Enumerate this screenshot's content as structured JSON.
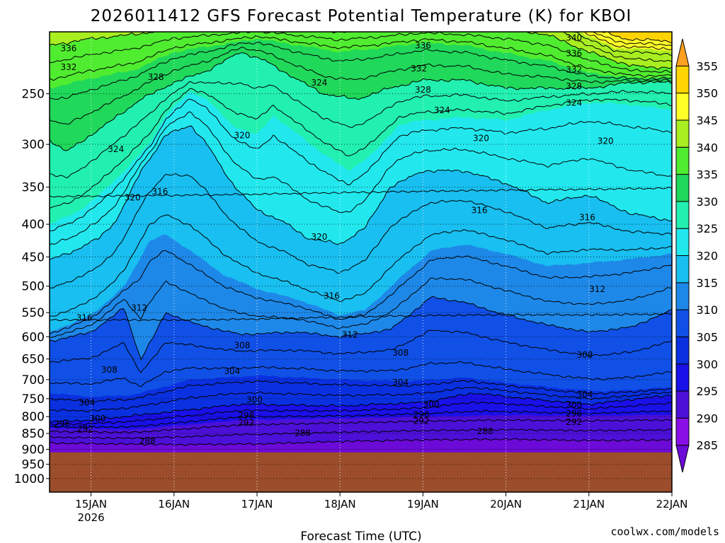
{
  "title": "2026011412 GFS Forecast Potential Temperature (K) for KBOI",
  "credit": "coolwx.com/models",
  "colors": {
    "ground": "#9c4d2b",
    "credit": "#c23b3b",
    "levels": [
      {
        "min": 280,
        "max": 285,
        "color": "#6c0ad8"
      },
      {
        "min": 285,
        "max": 290,
        "color": "#8a0fe6"
      },
      {
        "min": 290,
        "max": 295,
        "color": "#4c10d8"
      },
      {
        "min": 295,
        "max": 300,
        "color": "#1a10e8"
      },
      {
        "min": 300,
        "max": 305,
        "color": "#0a30e0"
      },
      {
        "min": 305,
        "max": 310,
        "color": "#1050e6"
      },
      {
        "min": 310,
        "max": 315,
        "color": "#1e88e8"
      },
      {
        "min": 315,
        "max": 320,
        "color": "#18bff0"
      },
      {
        "min": 320,
        "max": 325,
        "color": "#22e8ee"
      },
      {
        "min": 325,
        "max": 330,
        "color": "#22f0b0"
      },
      {
        "min": 330,
        "max": 335,
        "color": "#20d85a"
      },
      {
        "min": 335,
        "max": 340,
        "color": "#50ec30"
      },
      {
        "min": 340,
        "max": 345,
        "color": "#a8ee20"
      },
      {
        "min": 345,
        "max": 350,
        "color": "#ffff28"
      },
      {
        "min": 350,
        "max": 355,
        "color": "#ffd400"
      },
      {
        "min": 355,
        "max": 360,
        "color": "#ffa020"
      }
    ]
  },
  "chart_data": {
    "type": "heatmap",
    "title": "2026011412 GFS Forecast Potential Temperature (K) for KBOI",
    "xlabel": "Forecast Time (UTC)",
    "ylabel": "",
    "x_range_days": [
      14.5,
      22.0
    ],
    "x_ticks": [
      {
        "day": 15,
        "label": "15JAN",
        "sub": "2026"
      },
      {
        "day": 16,
        "label": "16JAN",
        "sub": ""
      },
      {
        "day": 17,
        "label": "17JAN",
        "sub": ""
      },
      {
        "day": 18,
        "label": "18JAN",
        "sub": ""
      },
      {
        "day": 19,
        "label": "19JAN",
        "sub": ""
      },
      {
        "day": 20,
        "label": "20JAN",
        "sub": ""
      },
      {
        "day": 21,
        "label": "21JAN",
        "sub": ""
      },
      {
        "day": 22,
        "label": "22JAN",
        "sub": ""
      }
    ],
    "y_ticks_hpa": [
      250,
      300,
      350,
      400,
      450,
      500,
      550,
      600,
      650,
      700,
      750,
      800,
      850,
      900,
      950,
      1000
    ],
    "pressure_range_hpa": [
      200,
      1050
    ],
    "ground_surface_hpa": 910,
    "colorbar_ticks": [
      285,
      290,
      295,
      300,
      305,
      310,
      315,
      320,
      325,
      330,
      335,
      340,
      345,
      350,
      355
    ],
    "colorbar_range": [
      280,
      360
    ],
    "grid": "dotted",
    "contour_interval_K": 2,
    "contour_labels": [
      {
        "value": 336,
        "day": 14.73,
        "hpa": 212
      },
      {
        "value": 332,
        "day": 14.73,
        "hpa": 227
      },
      {
        "value": 328,
        "day": 15.78,
        "hpa": 235
      },
      {
        "value": 324,
        "day": 15.3,
        "hpa": 305
      },
      {
        "value": 320,
        "day": 15.5,
        "hpa": 363
      },
      {
        "value": 316,
        "day": 15.83,
        "hpa": 355
      },
      {
        "value": 316,
        "day": 14.92,
        "hpa": 560
      },
      {
        "value": 312,
        "day": 15.58,
        "hpa": 540
      },
      {
        "value": 308,
        "day": 15.22,
        "hpa": 675
      },
      {
        "value": 304,
        "day": 14.95,
        "hpa": 760
      },
      {
        "value": 300,
        "day": 15.08,
        "hpa": 805
      },
      {
        "value": 296,
        "day": 14.65,
        "hpa": 820
      },
      {
        "value": 292,
        "day": 14.93,
        "hpa": 835
      },
      {
        "value": 288,
        "day": 15.68,
        "hpa": 872
      },
      {
        "value": 324,
        "day": 17.75,
        "hpa": 240
      },
      {
        "value": 320,
        "day": 16.82,
        "hpa": 290
      },
      {
        "value": 320,
        "day": 17.75,
        "hpa": 418
      },
      {
        "value": 316,
        "day": 17.9,
        "hpa": 517
      },
      {
        "value": 312,
        "day": 18.12,
        "hpa": 595
      },
      {
        "value": 308,
        "day": 16.82,
        "hpa": 618
      },
      {
        "value": 304,
        "day": 16.7,
        "hpa": 678
      },
      {
        "value": 300,
        "day": 16.97,
        "hpa": 752
      },
      {
        "value": 298,
        "day": 16.87,
        "hpa": 795
      },
      {
        "value": 292,
        "day": 16.87,
        "hpa": 817
      },
      {
        "value": 288,
        "day": 17.55,
        "hpa": 848
      },
      {
        "value": 336,
        "day": 19.0,
        "hpa": 210
      },
      {
        "value": 332,
        "day": 18.95,
        "hpa": 228
      },
      {
        "value": 328,
        "day": 19.0,
        "hpa": 246
      },
      {
        "value": 324,
        "day": 19.23,
        "hpa": 265
      },
      {
        "value": 320,
        "day": 19.7,
        "hpa": 293
      },
      {
        "value": 316,
        "day": 19.68,
        "hpa": 380
      },
      {
        "value": 308,
        "day": 18.73,
        "hpa": 635
      },
      {
        "value": 304,
        "day": 18.73,
        "hpa": 707
      },
      {
        "value": 300,
        "day": 19.1,
        "hpa": 765
      },
      {
        "value": 296,
        "day": 18.98,
        "hpa": 793
      },
      {
        "value": 292,
        "day": 18.98,
        "hpa": 812
      },
      {
        "value": 288,
        "day": 19.75,
        "hpa": 842
      },
      {
        "value": 340,
        "day": 20.82,
        "hpa": 204
      },
      {
        "value": 336,
        "day": 20.82,
        "hpa": 216
      },
      {
        "value": 332,
        "day": 20.82,
        "hpa": 229
      },
      {
        "value": 328,
        "day": 20.82,
        "hpa": 243
      },
      {
        "value": 324,
        "day": 20.82,
        "hpa": 258
      },
      {
        "value": 320,
        "day": 21.2,
        "hpa": 296
      },
      {
        "value": 316,
        "day": 20.98,
        "hpa": 390
      },
      {
        "value": 312,
        "day": 21.1,
        "hpa": 505
      },
      {
        "value": 308,
        "day": 20.95,
        "hpa": 640
      },
      {
        "value": 304,
        "day": 20.95,
        "hpa": 738
      },
      {
        "value": 300,
        "day": 20.82,
        "hpa": 767
      },
      {
        "value": 296,
        "day": 20.82,
        "hpa": 790
      },
      {
        "value": 292,
        "day": 20.82,
        "hpa": 815
      }
    ]
  }
}
